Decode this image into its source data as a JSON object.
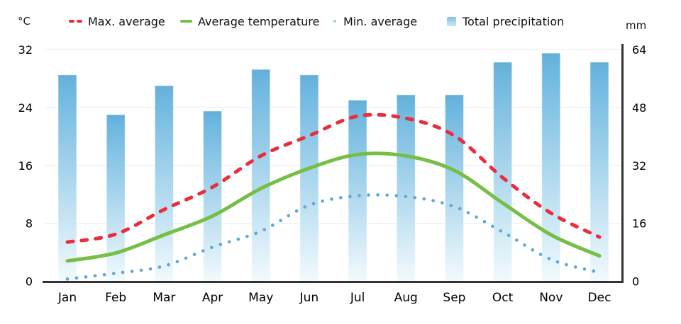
{
  "legend": [
    {
      "label": "Max. average",
      "marker": "dashed-line",
      "color": "#e92d3c"
    },
    {
      "label": "Average temperature",
      "marker": "solid-line",
      "color": "#74bf44"
    },
    {
      "label": "Min. average",
      "marker": "dotted-line",
      "color": "#5fa8d7"
    },
    {
      "label": "Total precipitation",
      "marker": "gradient-square",
      "color": "#69b3dd"
    }
  ],
  "chart_data": {
    "type": "combo-bar-line-climate",
    "categories": [
      "Jan",
      "Feb",
      "Mar",
      "Apr",
      "May",
      "Jun",
      "Jul",
      "Aug",
      "Sep",
      "Oct",
      "Nov",
      "Dec"
    ],
    "series": [
      {
        "name": "Max. average",
        "type": "line",
        "style": "dashed",
        "axis": "left",
        "color": "#e92d3c",
        "values": [
          5.4,
          6.5,
          9.9,
          13.0,
          17.3,
          20.1,
          22.8,
          22.5,
          20.1,
          14.3,
          9.4,
          6.1
        ]
      },
      {
        "name": "Average temperature",
        "type": "line",
        "style": "solid",
        "axis": "left",
        "color": "#74bf44",
        "values": [
          2.8,
          3.9,
          6.4,
          9.0,
          12.8,
          15.6,
          17.5,
          17.3,
          15.3,
          10.8,
          6.4,
          3.5
        ]
      },
      {
        "name": "Min. average",
        "type": "line",
        "style": "dotted",
        "axis": "left",
        "color": "#5fa8d7",
        "values": [
          0.3,
          1.1,
          2.1,
          4.7,
          6.9,
          10.5,
          11.8,
          11.7,
          10.3,
          6.8,
          3.0,
          1.2
        ]
      },
      {
        "name": "Total precipitation",
        "type": "bar",
        "axis": "right",
        "color_top": "#63afd9",
        "color_bottom": "#f2fafd",
        "values": [
          57,
          46,
          54,
          47,
          58.5,
          57,
          50,
          51.5,
          51.5,
          60.5,
          63,
          60.5
        ]
      }
    ],
    "left_axis": {
      "label": "°C",
      "ticks": [
        0,
        8,
        16,
        24,
        32
      ],
      "range": [
        0,
        32
      ]
    },
    "right_axis": {
      "label": "mm",
      "ticks": [
        0,
        16,
        32,
        48,
        64
      ],
      "range": [
        0,
        64
      ]
    },
    "grid": true,
    "legend_position": "top",
    "grid_color": "#ebebeb",
    "axis_color": "#333333",
    "text_color": "#000000"
  }
}
